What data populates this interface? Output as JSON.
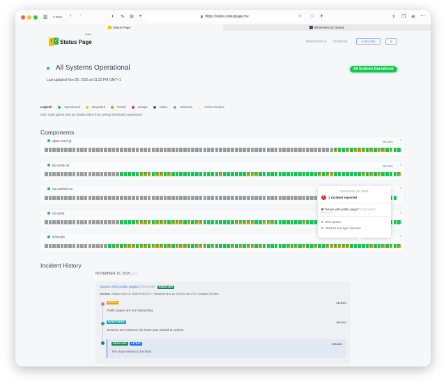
{
  "browser": {
    "tabs_count": "2 Tabs",
    "url": "https://status.statuspage.me",
    "tabs": [
      {
        "label": "Status Page",
        "active": true
      },
      {
        "label": "WhoHosts.pro Status",
        "active": false
      }
    ]
  },
  "header": {
    "logo_text": "Status Page",
    "logo_sub": "hosted",
    "nav": [
      "Maintenance",
      "Incidents"
    ],
    "subscribe_label": "Subscribe",
    "settings_icon": "gear-icon"
  },
  "status": {
    "title": "All Systems Operational",
    "badge": "All Systems Operational",
    "last_updated": "Last updated Nov 26, 2025 at 01:23 PM GMT+1"
  },
  "legend": {
    "label": "Legend:",
    "items": [
      {
        "label": "Operational",
        "color": "#16c453"
      },
      {
        "label": "Degraded",
        "color": "#f5c400"
      },
      {
        "label": "Partial",
        "color": "#f68a0a"
      },
      {
        "label": "Outage",
        "color": "#e0323c"
      },
      {
        "label": "Maint.",
        "color": "#4b5a6b"
      },
      {
        "label": "Unknown",
        "color": "#9a9a9a"
      },
      {
        "label": "Active Incident",
        "color": "#fbeedd"
      }
    ],
    "note": "Note: Daily uptime ticks are shaded when they overlap scheduled maintenance."
  },
  "components": {
    "title": "Components",
    "items": [
      {
        "name": "apac-east-jp",
        "uptime": "99.46%",
        "ticks": "uuuuuuuuuuuuuuuuuuuuuuuuuuuuuuuuuuuuuuuuuuuuuuuuuuuuuuuuuuuuuuuuuuuuuuuuupoopopppopoppopoo"
      },
      {
        "name": "eu-west-uk",
        "uptime": "99.63%",
        "ticks": "uuuuuuuuuuuuuuuuuuuooooopppoppopoooooooooooopoooooopppooooooooooooooopoppooooooopopopoooopoooooopop"
      },
      {
        "name": "na-central-us",
        "uptime": "",
        "ticks": "uuuuuuuuuuuuuuuuuuuuuuuuuuuuuuuuuuuuuuuuuuuuuuuuuuuuuuuuuuuuuuuuuuuuuuuuuuuuuuuuuuuuuoooo"
      },
      {
        "name": "no-west",
        "uptime": "",
        "ticks": "uuuuuuuuuuuuuuuuuuuooooppppopppopppopoppoooooooopppppoopppooooooopooopoppooooooooooooooooooo"
      },
      {
        "name": "Website",
        "uptime": "",
        "ticks": "uuuuuuuuuuuuuuuuoopopppoppopppopopppoopppopoooopopoppopoooooopopopoopooppppppooooopoopopopop"
      }
    ]
  },
  "tooltip": {
    "date": "November 16, 2025",
    "incidents": "1 incident reported",
    "incident_title": "\"Issues with public pages\"",
    "incident_group": "(\"General\")",
    "incident_status": "Resolved",
    "uptime": "99% uptime",
    "response": "1534ms average response"
  },
  "history": {
    "title": "Incident History",
    "date": "NOVEMBER 16, 2025",
    "tz": "(UTC)",
    "incident": {
      "title": "Issues with public pages",
      "group": "(General)",
      "badge": "RESOLVED",
      "meta_group": "General",
      "meta": " • Started Nov 16, 2025 04:50 UTC • Resolved Nov 16, 2025 11:50 UTC • Duration 6h 59m",
      "updates": [
        {
          "status": "INITIAL",
          "color": "#f99b0b",
          "text": "Public pages are not responding.",
          "ago": "1W AGO"
        },
        {
          "status": "MONITORING",
          "color": "#13a3b8",
          "text": "Services are restored; the issue was related to caches.",
          "ago": "1W AGO"
        },
        {
          "status": "RESOLVED",
          "latest": "LATEST",
          "color": "#198754",
          "text": "The issue seems to be fixed.",
          "ago": "1W AGO"
        }
      ]
    }
  }
}
